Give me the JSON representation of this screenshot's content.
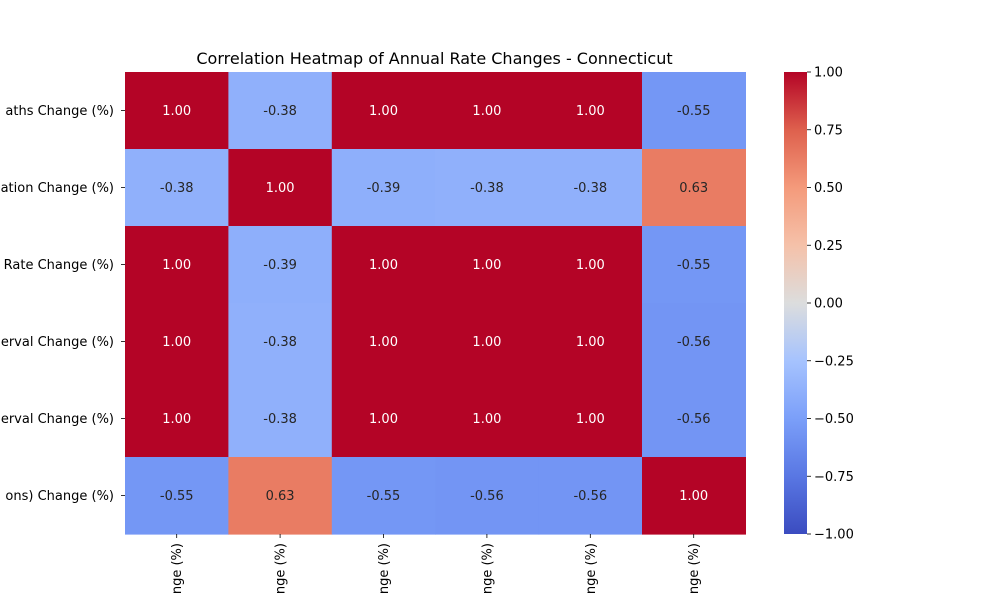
{
  "chart_data": {
    "type": "heatmap",
    "title": "Correlation Heatmap of Annual Rate Changes - Connecticut",
    "row_labels": [
      "aths Change (%)",
      "ation Change (%)",
      "Rate Change (%)",
      "erval Change (%)",
      "erval Change (%)",
      "ons) Change (%)"
    ],
    "col_labels": [
      "nge (%)",
      "nge (%)",
      "nge (%)",
      "nge (%)",
      "nge (%)",
      "nge (%)"
    ],
    "values": [
      [
        1.0,
        -0.38,
        1.0,
        1.0,
        1.0,
        -0.55
      ],
      [
        -0.38,
        1.0,
        -0.39,
        -0.38,
        -0.38,
        0.63
      ],
      [
        1.0,
        -0.39,
        1.0,
        1.0,
        1.0,
        -0.55
      ],
      [
        1.0,
        -0.38,
        1.0,
        1.0,
        1.0,
        -0.56
      ],
      [
        1.0,
        -0.38,
        1.0,
        1.0,
        1.0,
        -0.56
      ],
      [
        -0.55,
        0.63,
        -0.55,
        -0.56,
        -0.56,
        1.0
      ]
    ],
    "value_format": "0.00",
    "colormap": "coolwarm",
    "vmin": -1.0,
    "vmax": 1.0,
    "colorbar_ticks": [
      "1.00",
      "0.75",
      "0.50",
      "0.25",
      "0.00",
      "−0.25",
      "−0.50",
      "−0.75",
      "−1.00"
    ],
    "grid": false
  }
}
